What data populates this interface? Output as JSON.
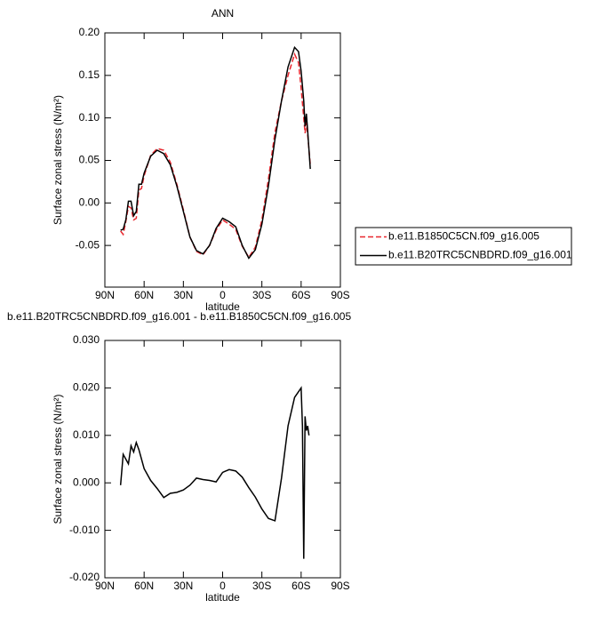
{
  "chart_data": [
    {
      "type": "line",
      "title": "ANN",
      "xlabel": "latitude",
      "ylabel": "Surface zonal stress (N/m²)",
      "x": [
        78,
        76,
        74,
        72,
        70,
        68,
        66,
        64,
        62,
        60,
        55,
        50,
        45,
        40,
        35,
        30,
        25,
        20,
        15,
        10,
        5,
        0,
        -5,
        -10,
        -15,
        -20,
        -25,
        -30,
        -35,
        -40,
        -45,
        -50,
        -55,
        -58,
        -60,
        -62,
        -63,
        -64,
        -65,
        -67
      ],
      "series": [
        {
          "name": "b.e11.B1850C5CN.f09_g16.005",
          "color": "#e8272e",
          "line_style": "dashed",
          "values": [
            -0.033,
            -0.037,
            -0.022,
            -0.004,
            -0.006,
            -0.02,
            -0.018,
            0.015,
            0.017,
            0.032,
            0.056,
            0.064,
            0.062,
            0.048,
            0.022,
            -0.008,
            -0.04,
            -0.057,
            -0.061,
            -0.05,
            -0.032,
            -0.02,
            -0.025,
            -0.031,
            -0.051,
            -0.064,
            -0.052,
            -0.02,
            0.028,
            0.083,
            0.12,
            0.15,
            0.175,
            0.165,
            0.135,
            0.1,
            0.082,
            0.095,
            0.08,
            0.045
          ]
        },
        {
          "name": "b.e11.B20TRC5CNBDRD.f09_g16.001",
          "color": "#000000",
          "line_style": "solid",
          "values": [
            -0.032,
            -0.031,
            -0.02,
            0.002,
            0.002,
            -0.015,
            -0.01,
            0.022,
            0.022,
            0.035,
            0.055,
            0.062,
            0.058,
            0.045,
            0.02,
            -0.01,
            -0.04,
            -0.056,
            -0.06,
            -0.05,
            -0.03,
            -0.018,
            -0.022,
            -0.028,
            -0.05,
            -0.065,
            -0.055,
            -0.025,
            0.02,
            0.075,
            0.12,
            0.16,
            0.183,
            0.178,
            0.155,
            0.12,
            0.09,
            0.105,
            0.085,
            0.04
          ]
        }
      ],
      "xlim": [
        90,
        -90
      ],
      "xticks": [
        {
          "value": 90,
          "label": "90N"
        },
        {
          "value": 60,
          "label": "60N"
        },
        {
          "value": 30,
          "label": "30N"
        },
        0,
        {
          "value": -30,
          "label": "30S"
        },
        {
          "value": -60,
          "label": "60S"
        },
        {
          "value": -90,
          "label": "90S"
        }
      ],
      "ylim": [
        -0.099,
        0.2
      ],
      "yticks": [
        {
          "value": 0.2,
          "label": "0.20"
        },
        {
          "value": 0.15,
          "label": "0.15"
        },
        {
          "value": 0.1,
          "label": "0.10"
        },
        {
          "value": 0.05,
          "label": "0.05"
        },
        {
          "value": 0,
          "label": "0.00"
        },
        -0.05
      ],
      "legend": "right"
    },
    {
      "type": "line",
      "title": "b.e11.B20TRC5CNBDRD.f09_g16.001 - b.e11.B1850C5CN.f09_g16.005",
      "xlabel": "latitude",
      "ylabel": "Surface zonal stress (N/m²)",
      "x": [
        78,
        76,
        74,
        72,
        70,
        68,
        66,
        64,
        60,
        55,
        50,
        45,
        40,
        35,
        30,
        25,
        20,
        15,
        10,
        5,
        0,
        -5,
        -10,
        -15,
        -20,
        -25,
        -30,
        -35,
        -40,
        -45,
        -50,
        -55,
        -60,
        -61,
        -62,
        -63,
        -64,
        -65,
        -66
      ],
      "series": [
        {
          "color": "#000000",
          "line_style": "solid",
          "values": [
            -0.0005,
            0.006,
            0.005,
            0.004,
            0.0078,
            0.0065,
            0.0085,
            0.007,
            0.003,
            0.0005,
            -0.0012,
            -0.0031,
            -0.0022,
            -0.002,
            -0.0015,
            -0.0005,
            0.001,
            0.0007,
            0.0005,
            0.0002,
            0.0022,
            0.0028,
            0.0025,
            0.0012,
            -0.001,
            -0.003,
            -0.0055,
            -0.0075,
            -0.008,
            0.001,
            0.012,
            0.018,
            0.02,
            0.012,
            -0.016,
            0.014,
            0.011,
            0.012,
            0.01
          ]
        }
      ],
      "xlim": [
        90,
        -90
      ],
      "xticks": [
        {
          "value": 90,
          "label": "90N"
        },
        {
          "value": 60,
          "label": "60N"
        },
        {
          "value": 30,
          "label": "30N"
        },
        0,
        {
          "value": -30,
          "label": "30S"
        },
        {
          "value": -60,
          "label": "60S"
        },
        {
          "value": -90,
          "label": "90S"
        }
      ],
      "ylim": [
        -0.02,
        0.03
      ],
      "yticks": [
        {
          "value": 0.03,
          "label": "0.030"
        },
        {
          "value": 0.02,
          "label": "0.020"
        },
        {
          "value": 0.01,
          "label": "0.010"
        },
        {
          "value": 0,
          "label": "0.000"
        },
        {
          "value": -0.01,
          "label": "-0.010"
        },
        {
          "value": -0.02,
          "label": "-0.020"
        }
      ]
    }
  ]
}
